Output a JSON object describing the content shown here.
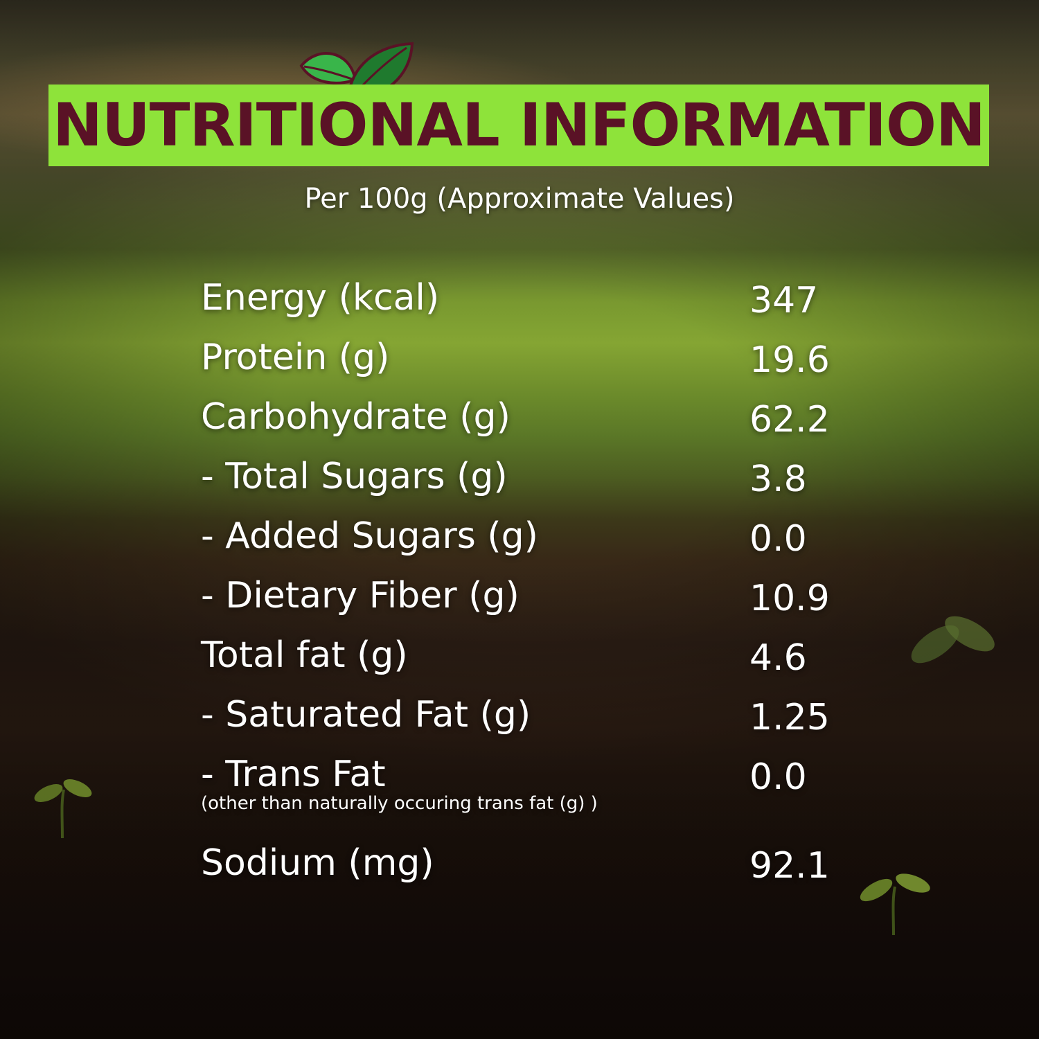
{
  "header": {
    "title": "NUTRITIONAL INFORMATION",
    "subtitle": "Per 100g (Approximate Values)"
  },
  "colors": {
    "banner": "#8ee33a",
    "title_text": "#5a1226",
    "leaf_dark": "#1f7a2e",
    "leaf_light": "#39b54a"
  },
  "nutrition": {
    "rows": [
      {
        "label": "Energy (kcal)",
        "value": "347"
      },
      {
        "label": "Protein (g)",
        "value": "19.6"
      },
      {
        "label": "Carbohydrate (g)",
        "value": "62.2"
      },
      {
        "label": "- Total Sugars (g)",
        "value": "3.8"
      },
      {
        "label": "- Added Sugars (g)",
        "value": "0.0"
      },
      {
        "label": "- Dietary Fiber (g)",
        "value": "10.9"
      },
      {
        "label": "Total fat (g)",
        "value": "4.6"
      },
      {
        "label": "- Saturated Fat (g)",
        "value": "1.25"
      },
      {
        "label": "- Trans Fat",
        "value": "0.0",
        "note": "(other than naturally occuring trans fat (g) )"
      },
      {
        "label": "Sodium (mg)",
        "value": "92.1"
      }
    ]
  }
}
